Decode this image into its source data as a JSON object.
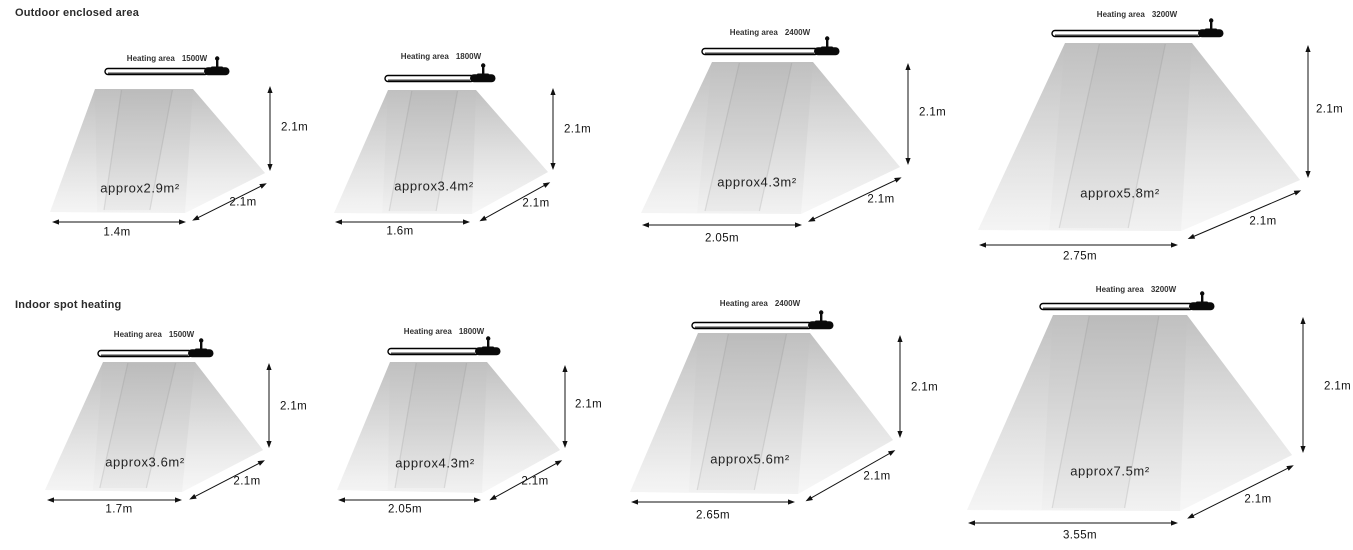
{
  "colors": {
    "background": "#ffffff",
    "shape_top": "#c0c0c0",
    "shape_bottom": "#f2f2f2",
    "line": "#111111",
    "text": "#1a1a1a"
  },
  "sections": [
    {
      "title": "Outdoor enclosed area",
      "panels": [
        {
          "heater_prefix": "Heating area",
          "heater_power": "1500W",
          "area": "approx2.9m²",
          "height": "2.1m",
          "depth": "2.1m",
          "width": "1.4m"
        },
        {
          "heater_prefix": "Heating area",
          "heater_power": "1800W",
          "area": "approx3.4m²",
          "height": "2.1m",
          "depth": "2.1m",
          "width": "1.6m"
        },
        {
          "heater_prefix": "Heating area",
          "heater_power": "2400W",
          "area": "approx4.3m²",
          "height": "2.1m",
          "depth": "2.1m",
          "width": "2.05m"
        },
        {
          "heater_prefix": "Heating area",
          "heater_power": "3200W",
          "area": "approx5.8m²",
          "height": "2.1m",
          "depth": "2.1m",
          "width": "2.75m"
        }
      ]
    },
    {
      "title": "Indoor spot heating",
      "panels": [
        {
          "heater_prefix": "Heating area",
          "heater_power": "1500W",
          "area": "approx3.6m²",
          "height": "2.1m",
          "depth": "2.1m",
          "width": "1.7m"
        },
        {
          "heater_prefix": "Heating area",
          "heater_power": "1800W",
          "area": "approx4.3m²",
          "height": "2.1m",
          "depth": "2.1m",
          "width": "2.05m"
        },
        {
          "heater_prefix": "Heating area",
          "heater_power": "2400W",
          "area": "approx5.6m²",
          "height": "2.1m",
          "depth": "2.1m",
          "width": "2.65m"
        },
        {
          "heater_prefix": "Heating area",
          "heater_power": "3200W",
          "area": "approx7.5m²",
          "height": "2.1m",
          "depth": "2.1m",
          "width": "3.55m"
        }
      ]
    }
  ]
}
